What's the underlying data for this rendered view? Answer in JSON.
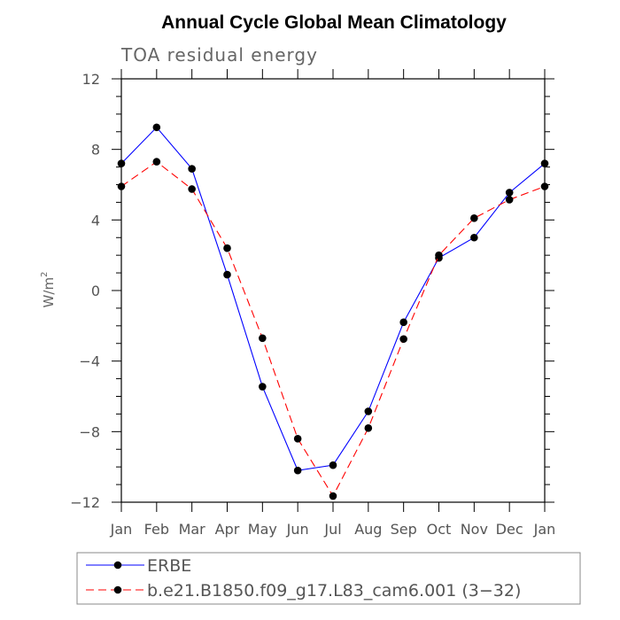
{
  "chart_data": {
    "type": "line",
    "title": "Annual Cycle Global Mean Climatology",
    "subtitle": "TOA residual energy",
    "ylabel_base": "W/m",
    "ylabel_sup": "2",
    "categories": [
      "Jan",
      "Feb",
      "Mar",
      "Apr",
      "May",
      "Jun",
      "Jul",
      "Aug",
      "Sep",
      "Oct",
      "Nov",
      "Dec",
      "Jan"
    ],
    "ylim": [
      -12,
      12
    ],
    "yticks": [
      -12,
      -8,
      -4,
      0,
      4,
      8,
      12
    ],
    "ytick_labels": [
      "−12",
      "−8",
      "−4",
      "0",
      "4",
      "8",
      "12"
    ],
    "series": [
      {
        "name": "ERBE",
        "color": "#0000ff",
        "dash": "solid",
        "values": [
          7.2,
          9.25,
          6.9,
          0.9,
          -5.45,
          -10.2,
          -9.9,
          -6.85,
          -1.8,
          1.85,
          3.0,
          5.55,
          7.2
        ]
      },
      {
        "name": "b.e21.B1850.f09_g17.L83_cam6.001 (3−32)",
        "color": "#ff0000",
        "dash": "dashed",
        "values": [
          5.9,
          7.3,
          5.75,
          2.4,
          -2.7,
          -8.4,
          -11.65,
          -7.8,
          -2.75,
          2.0,
          4.1,
          5.15,
          5.9
        ]
      }
    ]
  }
}
